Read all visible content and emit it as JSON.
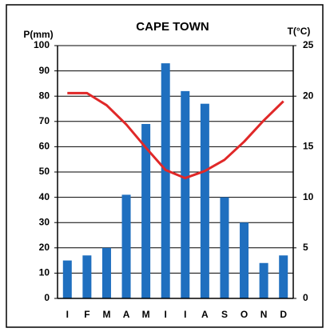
{
  "chart_data": {
    "type": "bar",
    "title": "CAPE TOWN",
    "y_label": "P(mm)",
    "y2_label": "T(°C)",
    "categories": [
      "I",
      "F",
      "M",
      "A",
      "M",
      "I",
      "I",
      "A",
      "S",
      "O",
      "N",
      "D"
    ],
    "series": [
      {
        "name": "P(mm)",
        "type": "bar",
        "color": "#1f6fbf",
        "values": [
          15,
          17,
          20,
          41,
          69,
          93,
          82,
          77,
          40,
          30,
          14,
          17
        ]
      },
      {
        "name": "T(°C)",
        "type": "line",
        "axis": "y2",
        "color": "#e02828",
        "values": [
          20.3,
          20.3,
          19.1,
          17.2,
          14.9,
          12.7,
          11.9,
          12.6,
          13.7,
          15.5,
          17.6,
          19.5
        ]
      }
    ],
    "ylim": [
      0,
      100
    ],
    "yticks": [
      0,
      10,
      20,
      30,
      40,
      50,
      60,
      70,
      80,
      90,
      100
    ],
    "y2lim": [
      0,
      25
    ],
    "y2ticks": [
      0,
      5,
      10,
      15,
      20,
      25
    ],
    "grid": true
  }
}
